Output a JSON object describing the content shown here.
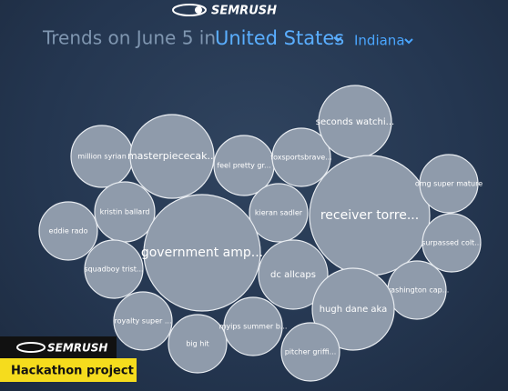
{
  "header": {
    "logo": "SEMRUSH",
    "title": "Trends on June 5 in",
    "country": "United States",
    "region": "Indiana"
  },
  "bubbles": [
    "million syrian",
    "masterpiececak...",
    "feel pretty gr...",
    "foxsportsbrave...",
    "seconds watchi...",
    "receiver torre...",
    "omg super mature",
    "surpassed colt...",
    "kristin ballard",
    "eddie rado",
    "kieran sadler",
    "government amp...",
    "dc allcaps",
    "squadboy trist...",
    "washington cap...",
    "hugh dane aka",
    "royalty super ...",
    "big hit",
    "myips summer b...",
    "pitcher griffi..."
  ],
  "badge": {
    "logo": "SEMRUSH",
    "label": "Hackathon project"
  }
}
